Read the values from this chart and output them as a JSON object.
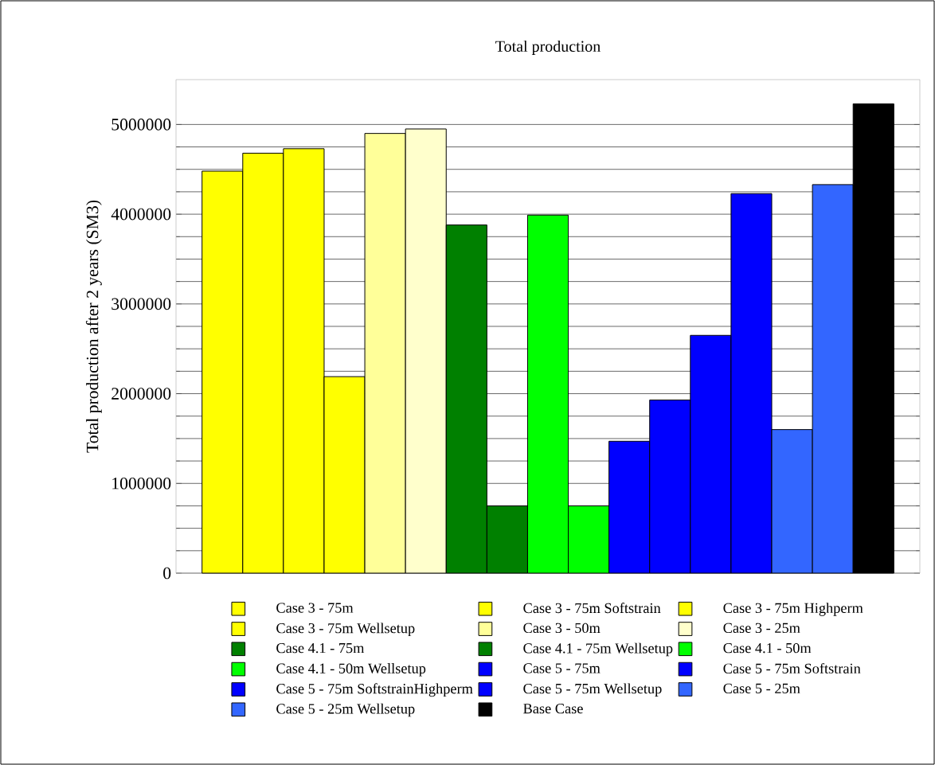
{
  "chart_data": {
    "type": "bar",
    "title": "Total production",
    "ylabel": "Total production after 2 years (SM3)",
    "categories": [
      null
    ],
    "series": [
      {
        "name": "Case 3 - 75m",
        "color": "#ffff00",
        "values": [
          4480000
        ]
      },
      {
        "name": "Case 3 - 75m Softstrain",
        "color": "#ffff00",
        "values": [
          4680000
        ]
      },
      {
        "name": "Case 3 - 75m Highperm",
        "color": "#ffff00",
        "values": [
          4730000
        ]
      },
      {
        "name": "Case 3 - 75m Wellsetup",
        "color": "#ffff00",
        "values": [
          2190000
        ]
      },
      {
        "name": "Case 3 - 50m",
        "color": "#ffff99",
        "values": [
          4900000
        ]
      },
      {
        "name": "Case 3 - 25m",
        "color": "#ffffcc",
        "values": [
          4950000
        ]
      },
      {
        "name": "Case 4.1 - 75m",
        "color": "#008000",
        "values": [
          3880000
        ]
      },
      {
        "name": "Case 4.1 - 75m Wellsetup",
        "color": "#008000",
        "values": [
          750000
        ]
      },
      {
        "name": "Case 4.1 - 50m",
        "color": "#00ff00",
        "values": [
          3990000
        ]
      },
      {
        "name": "Case 4.1 - 50m Wellsetup",
        "color": "#00ff00",
        "values": [
          750000
        ]
      },
      {
        "name": "Case 5 - 75m",
        "color": "#0000ff",
        "values": [
          1470000
        ]
      },
      {
        "name": "Case 5 - 75m Softstrain",
        "color": "#0000ff",
        "values": [
          1930000
        ]
      },
      {
        "name": "Case 5 - 75m SoftstrainHighperm",
        "color": "#0000ff",
        "values": [
          2650000
        ]
      },
      {
        "name": "Case 5 - 75m Wellsetup",
        "color": "#0000ff",
        "values": [
          4230000
        ]
      },
      {
        "name": "Case 5 - 25m",
        "color": "#3366ff",
        "values": [
          1600000
        ]
      },
      {
        "name": "Case 5 - 25m Wellsetup",
        "color": "#3366ff",
        "values": [
          4330000
        ]
      },
      {
        "name": "Base Case",
        "color": "#000000",
        "values": [
          5230000
        ]
      }
    ],
    "ylim": [
      0,
      5500000
    ],
    "yticks": [
      0,
      1000000,
      2000000,
      3000000,
      4000000,
      5000000
    ],
    "grid": "y",
    "legend": "bottom",
    "tick_labels": "y"
  }
}
